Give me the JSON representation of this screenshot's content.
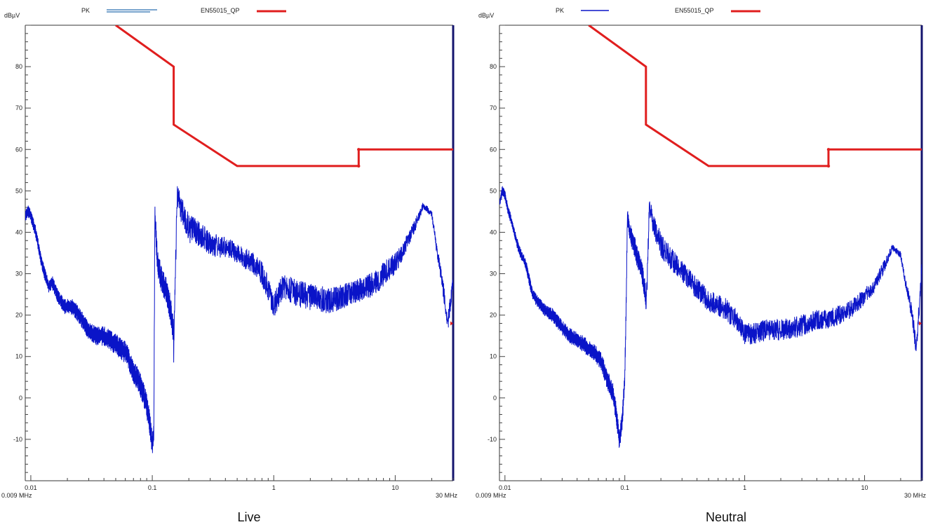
{
  "colors": {
    "pk": "#0a14c8",
    "limit": "#e01e1e",
    "axis": "#14146e",
    "text": "#222222"
  },
  "chart_data": [
    {
      "type": "line",
      "caption": "Live",
      "ylabel": "dBµV",
      "xscale": "log",
      "xlim": [
        0.009,
        30
      ],
      "ylim": [
        -20,
        90
      ],
      "yticks": [
        -10,
        0,
        10,
        20,
        30,
        40,
        50,
        60,
        70,
        80
      ],
      "ytick_labels": [
        "-10",
        "0",
        "10",
        "20",
        "30",
        "40",
        "50",
        "60",
        "70",
        "80"
      ],
      "xticks": [
        0.01,
        0.1,
        1,
        10
      ],
      "xtick_labels": [
        "0.01",
        "0.1",
        "1",
        "10"
      ],
      "x_start_label": "0.009 MHz",
      "x_end_label": "30 MHz",
      "legend": [
        {
          "name": "PK",
          "style": "double"
        },
        {
          "name": "EN55015_QP",
          "style": "thick"
        }
      ],
      "series": [
        {
          "name": "PK",
          "x": [
            0.009,
            0.0095,
            0.01,
            0.0105,
            0.011,
            0.012,
            0.013,
            0.014,
            0.015,
            0.017,
            0.019,
            0.022,
            0.025,
            0.03,
            0.035,
            0.04,
            0.045,
            0.05,
            0.055,
            0.06,
            0.065,
            0.07,
            0.075,
            0.08,
            0.085,
            0.09,
            0.095,
            0.1,
            0.103,
            0.105,
            0.11,
            0.12,
            0.13,
            0.14,
            0.15,
            0.16,
            0.2,
            0.25,
            0.3,
            0.4,
            0.5,
            0.6,
            0.7,
            0.8,
            0.9,
            1,
            1.2,
            1.5,
            2,
            3,
            4,
            5,
            6,
            7,
            8,
            10,
            12,
            15,
            17,
            20,
            22,
            25,
            27,
            30
          ],
          "values": [
            44,
            45,
            44,
            42,
            40,
            34,
            30,
            27,
            28,
            24,
            22,
            22,
            20,
            16,
            15,
            15,
            14,
            13,
            12,
            11,
            9,
            6,
            5,
            3,
            1,
            -2,
            -6,
            -11,
            -9,
            45,
            33,
            28,
            26,
            22,
            16,
            54,
            47,
            45,
            42,
            41,
            39,
            38,
            37,
            35,
            32,
            28,
            33,
            31,
            30,
            29,
            30,
            31,
            32,
            33,
            35,
            37,
            40,
            45,
            48,
            46,
            38,
            30,
            22,
            32
          ],
          "envelope": [
            [
              0.012,
              5
            ],
            [
              0.2,
              12
            ],
            [
              0.3,
              10
            ],
            [
              0.4,
              9
            ],
            [
              0.5,
              8
            ],
            [
              0.6,
              9
            ],
            [
              0.8,
              10
            ],
            [
              1,
              11
            ],
            [
              1.3,
              11
            ],
            [
              2,
              11
            ],
            [
              3,
              11
            ],
            [
              4,
              10
            ],
            [
              5,
              10
            ],
            [
              6,
              10
            ],
            [
              8,
              10
            ],
            [
              10,
              9
            ],
            [
              12,
              7
            ],
            [
              15,
              5
            ],
            [
              17,
              3
            ],
            [
              20,
              3
            ],
            [
              23,
              5
            ],
            [
              25,
              8
            ],
            [
              30,
              8
            ]
          ]
        },
        {
          "name": "EN55015_QP",
          "x": [
            0.05,
            0.15,
            0.15,
            0.5,
            5,
            5,
            30
          ],
          "values": [
            90,
            80,
            66,
            56,
            56,
            60,
            60
          ]
        }
      ]
    },
    {
      "type": "line",
      "caption": "Neutral",
      "ylabel": "dBµV",
      "xscale": "log",
      "xlim": [
        0.009,
        30
      ],
      "ylim": [
        -20,
        90
      ],
      "yticks": [
        -10,
        0,
        10,
        20,
        30,
        40,
        50,
        60,
        70,
        80
      ],
      "ytick_labels": [
        "-10",
        "0",
        "10",
        "20",
        "30",
        "40",
        "50",
        "60",
        "70",
        "80"
      ],
      "xticks": [
        0.01,
        0.1,
        1,
        10
      ],
      "xtick_labels": [
        "0.01",
        "0.1",
        "1",
        "10"
      ],
      "x_start_label": "0.009 MHz",
      "x_end_label": "30 MHz",
      "legend": [
        {
          "name": "PK",
          "style": "single"
        },
        {
          "name": "EN55015_QP",
          "style": "thick"
        }
      ],
      "series": [
        {
          "name": "PK",
          "x": [
            0.009,
            0.0095,
            0.01,
            0.0105,
            0.011,
            0.012,
            0.013,
            0.014,
            0.015,
            0.017,
            0.019,
            0.022,
            0.025,
            0.03,
            0.035,
            0.04,
            0.045,
            0.05,
            0.055,
            0.06,
            0.065,
            0.07,
            0.075,
            0.08,
            0.085,
            0.09,
            0.095,
            0.1,
            0.103,
            0.105,
            0.11,
            0.12,
            0.13,
            0.14,
            0.15,
            0.16,
            0.2,
            0.25,
            0.3,
            0.4,
            0.5,
            0.6,
            0.7,
            0.8,
            0.9,
            1,
            1.2,
            1.5,
            2,
            3,
            4,
            5,
            6,
            7,
            8,
            10,
            12,
            15,
            17,
            20,
            22,
            25,
            27,
            30
          ],
          "values": [
            47,
            50,
            49,
            46,
            44,
            40,
            36,
            34,
            32,
            25,
            23,
            21,
            20,
            17,
            15,
            14,
            13,
            12,
            11,
            10,
            8,
            5,
            3,
            1,
            -4,
            -10,
            -6,
            5,
            25,
            44,
            40,
            37,
            33,
            30,
            24,
            50,
            42,
            38,
            35,
            31,
            28,
            27,
            26,
            24,
            23,
            20,
            20,
            21,
            21,
            22,
            23,
            23,
            24,
            25,
            26,
            28,
            30,
            35,
            38,
            36,
            30,
            24,
            16,
            35
          ],
          "envelope": [
            [
              0.012,
              4
            ],
            [
              0.2,
              10
            ],
            [
              0.3,
              9
            ],
            [
              0.4,
              9
            ],
            [
              0.5,
              9
            ],
            [
              0.6,
              9
            ],
            [
              0.8,
              9
            ],
            [
              1,
              9
            ],
            [
              1.3,
              9
            ],
            [
              2,
              9
            ],
            [
              3,
              9
            ],
            [
              4,
              8
            ],
            [
              5,
              8
            ],
            [
              6,
              8
            ],
            [
              8,
              8
            ],
            [
              10,
              7
            ],
            [
              12,
              6
            ],
            [
              15,
              5
            ],
            [
              17,
              3
            ],
            [
              20,
              3
            ],
            [
              23,
              5
            ],
            [
              25,
              8
            ],
            [
              30,
              8
            ]
          ]
        },
        {
          "name": "EN55015_QP",
          "x": [
            0.05,
            0.15,
            0.15,
            0.5,
            5,
            5,
            30
          ],
          "values": [
            90,
            80,
            66,
            56,
            56,
            60,
            60
          ]
        }
      ]
    }
  ]
}
